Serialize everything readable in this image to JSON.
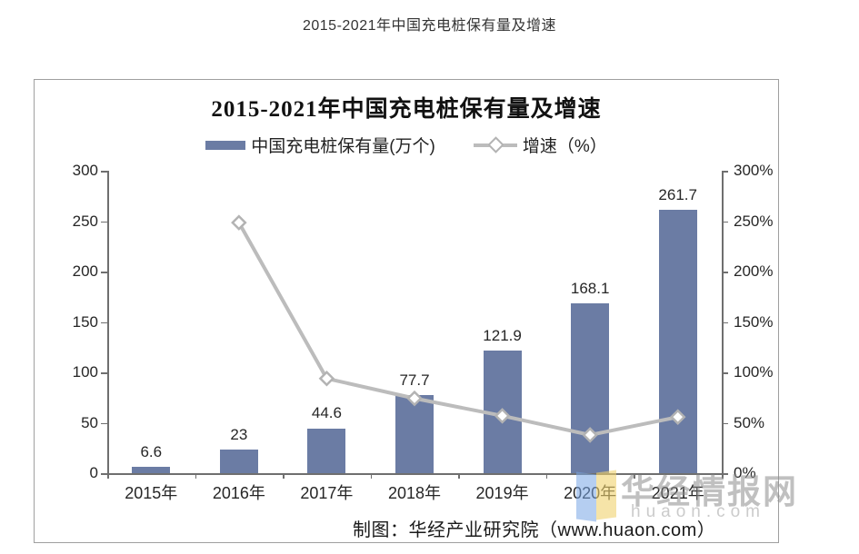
{
  "page": {
    "title": "2015-2021年中国充电桩保有量及增速"
  },
  "chart": {
    "title": "2015-2021年中国充电桩保有量及增速",
    "legend": [
      {
        "label": "中国充电桩保有量(万个)",
        "type": "bar",
        "color": "#6B7CA4"
      },
      {
        "label": "增速（%）",
        "type": "line",
        "color": "#BCBCBC"
      }
    ],
    "footer_credit": "制图：华经产业研究院（www.huaon.com）",
    "watermark": {
      "text": "华经情报网",
      "subtext": "huaon.com"
    }
  },
  "chart_data": {
    "type": "bar+line",
    "title": "2015-2021年中国充电桩保有量及增速",
    "categories": [
      "2015年",
      "2016年",
      "2017年",
      "2018年",
      "2019年",
      "2020年",
      "2021年"
    ],
    "series": [
      {
        "name": "中国充电桩保有量(万个)",
        "type": "bar",
        "axis": "left",
        "color": "#6B7CA4",
        "values": [
          6.6,
          23,
          44.6,
          77.7,
          121.9,
          168.1,
          261.7
        ],
        "labels": [
          "6.6",
          "23",
          "44.6",
          "77.7",
          "121.9",
          "168.1",
          "261.7"
        ]
      },
      {
        "name": "增速（%）",
        "type": "line",
        "axis": "right",
        "color": "#BCBCBC",
        "marker": "diamond",
        "values": [
          null,
          248.5,
          93.9,
          74.2,
          56.9,
          37.9,
          55.7
        ]
      }
    ],
    "left_axis": {
      "min": 0,
      "max": 300,
      "step": 50,
      "tick_labels": [
        "0",
        "50",
        "100",
        "150",
        "200",
        "250",
        "300"
      ]
    },
    "right_axis": {
      "min": 0,
      "max": 300,
      "step": 50,
      "tick_labels": [
        "0%",
        "50%",
        "100%",
        "150%",
        "200%",
        "250%",
        "300%"
      ]
    },
    "grid": false,
    "legend_position": "top"
  }
}
